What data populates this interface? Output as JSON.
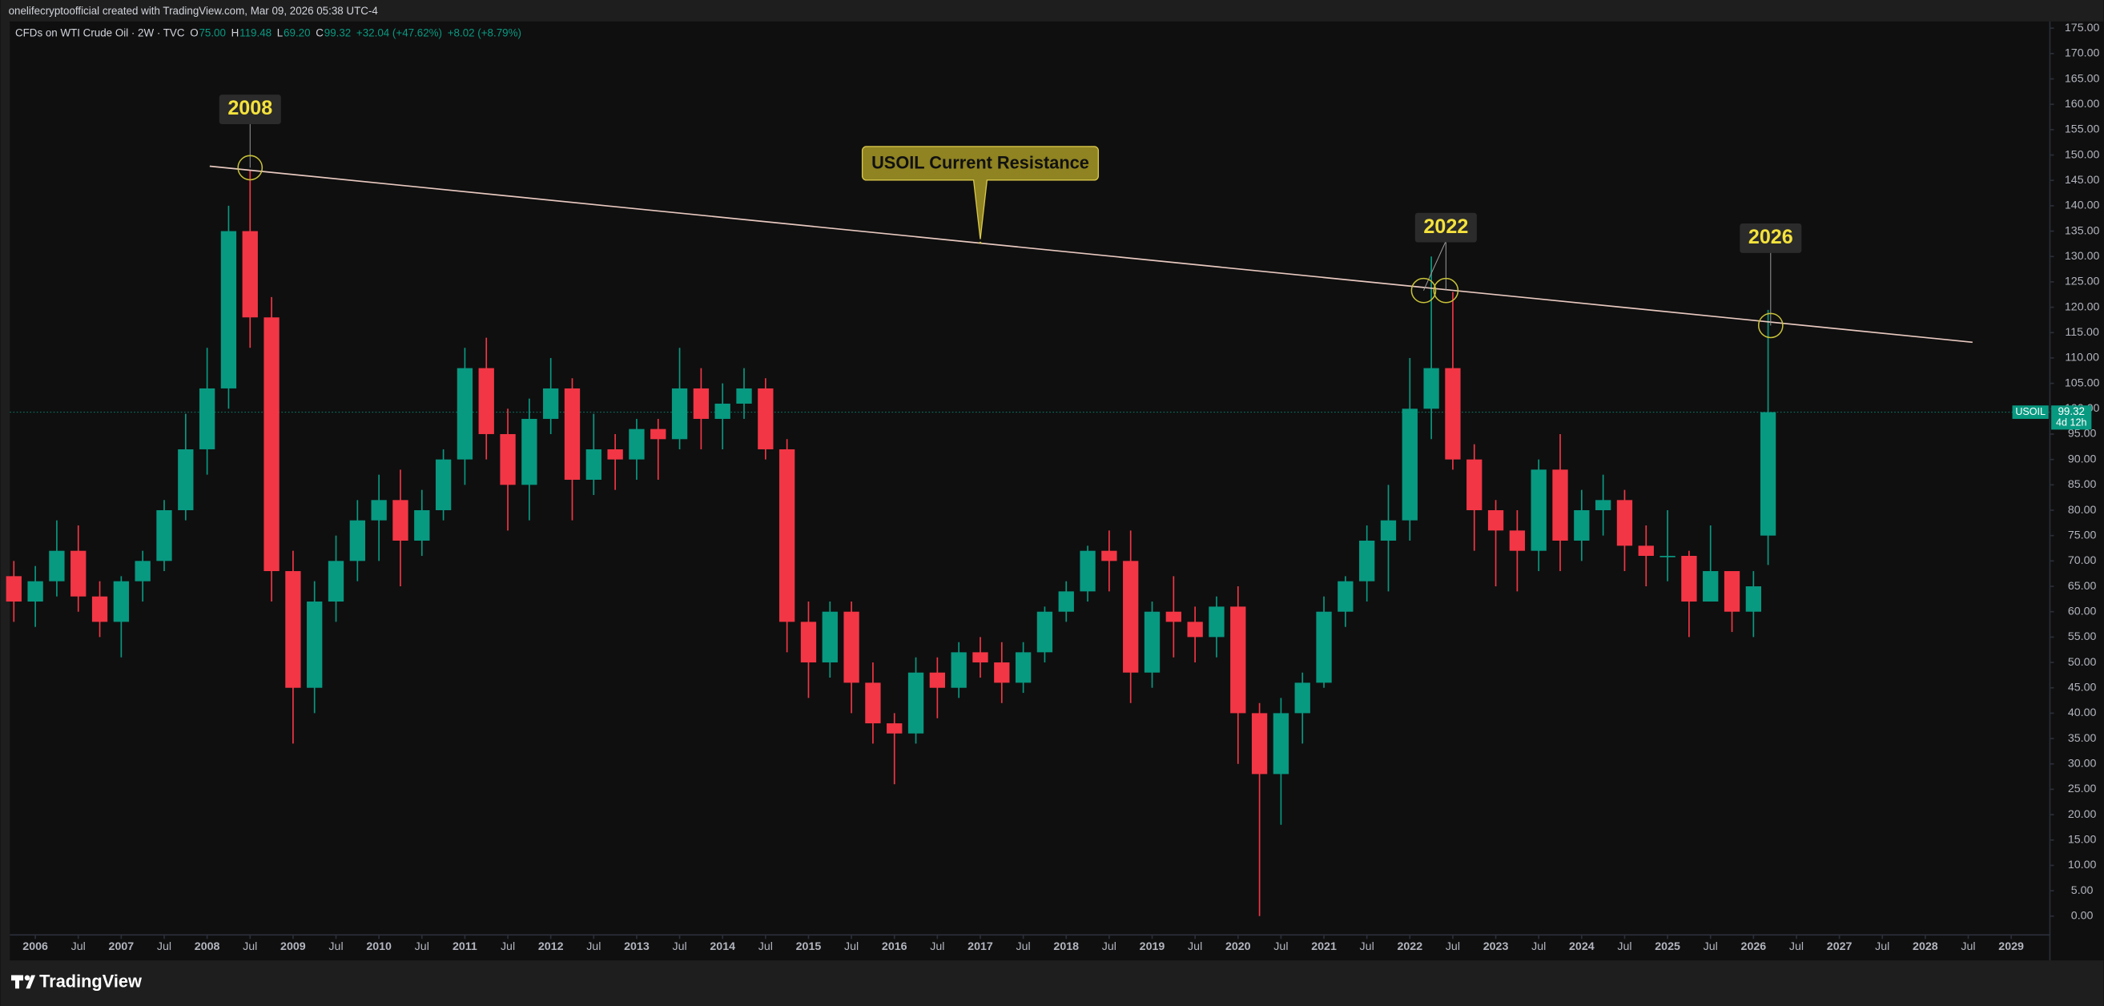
{
  "chart_data": {
    "type": "candlestick",
    "header": "onelifecryptoofficial created with TradingView.com, Mar 09, 2026 05:38 UTC-4",
    "legend": {
      "symbol": "CFDs on WTI Crude Oil · 2W · TVC",
      "o_key": "O",
      "o": "75.00",
      "h_key": "H",
      "h": "119.48",
      "l_key": "L",
      "l": "69.20",
      "c_key": "C",
      "c": "99.32",
      "change": "+32.04 (+47.62%)",
      "change2": "+8.02 (+8.79%)"
    },
    "brand": "TradingView",
    "up_color": "#089981",
    "down_color": "#f23645",
    "x": [
      2005.75,
      2006.0,
      2006.25,
      2006.5,
      2006.75,
      2007.0,
      2007.25,
      2007.5,
      2007.75,
      2008.0,
      2008.25,
      2008.5,
      2008.75,
      2009.0,
      2009.25,
      2009.5,
      2009.75,
      2010.0,
      2010.25,
      2010.5,
      2010.75,
      2011.0,
      2011.25,
      2011.5,
      2011.75,
      2012.0,
      2012.25,
      2012.5,
      2012.75,
      2013.0,
      2013.25,
      2013.5,
      2013.75,
      2014.0,
      2014.25,
      2014.5,
      2014.75,
      2015.0,
      2015.25,
      2015.5,
      2015.75,
      2016.0,
      2016.25,
      2016.5,
      2016.75,
      2017.0,
      2017.25,
      2017.5,
      2017.75,
      2018.0,
      2018.25,
      2018.5,
      2018.75,
      2019.0,
      2019.25,
      2019.5,
      2019.75,
      2020.0,
      2020.25,
      2020.5,
      2020.75,
      2021.0,
      2021.25,
      2021.5,
      2021.75,
      2022.0,
      2022.25,
      2022.5,
      2022.75,
      2023.0,
      2023.25,
      2023.5,
      2023.75,
      2024.0,
      2024.25,
      2024.5,
      2024.75,
      2025.0,
      2025.25,
      2025.5,
      2025.75,
      2026.0,
      2026.17
    ],
    "open": [
      67,
      62,
      66,
      72,
      63,
      58,
      66,
      70,
      80,
      92,
      104,
      135,
      118,
      68,
      45,
      62,
      70,
      78,
      82,
      74,
      80,
      90,
      108,
      95,
      85,
      98,
      104,
      86,
      92,
      90,
      96,
      94,
      104,
      98,
      101,
      104,
      92,
      58,
      50,
      60,
      46,
      38,
      36,
      48,
      45,
      52,
      50,
      46,
      52,
      60,
      64,
      72,
      70,
      48,
      60,
      58,
      55,
      61,
      40,
      28,
      40,
      46,
      60,
      66,
      74,
      78,
      100,
      108,
      90,
      80,
      76,
      72,
      88,
      74,
      80,
      82,
      73,
      71,
      71,
      62,
      68,
      60,
      75
    ],
    "high": [
      70,
      69,
      78,
      77,
      66,
      67,
      72,
      82,
      99,
      112,
      140,
      147,
      122,
      72,
      66,
      75,
      82,
      87,
      88,
      84,
      92,
      112,
      114,
      100,
      102,
      110,
      106,
      99,
      95,
      98,
      98,
      112,
      108,
      105,
      108,
      106,
      94,
      62,
      62,
      62,
      50,
      40,
      51,
      51,
      54,
      55,
      54,
      54,
      61,
      66,
      73,
      76,
      76,
      62,
      67,
      61,
      63,
      65,
      42,
      43,
      48,
      63,
      67,
      77,
      85,
      110,
      130,
      123,
      93,
      82,
      80,
      90,
      95,
      84,
      87,
      84,
      77,
      80,
      72,
      77,
      68,
      68,
      119.48
    ],
    "low": [
      58,
      57,
      63,
      60,
      55,
      51,
      62,
      68,
      78,
      87,
      100,
      112,
      62,
      34,
      40,
      58,
      66,
      70,
      65,
      71,
      78,
      85,
      90,
      76,
      78,
      95,
      78,
      83,
      84,
      86,
      86,
      92,
      92,
      92,
      98,
      90,
      52,
      43,
      47,
      40,
      34,
      26,
      34,
      39,
      43,
      47,
      42,
      44,
      50,
      58,
      62,
      64,
      42,
      45,
      51,
      50,
      51,
      30,
      0,
      18,
      34,
      45,
      57,
      62,
      64,
      74,
      94,
      88,
      72,
      65,
      64,
      68,
      68,
      70,
      75,
      68,
      65,
      66,
      55,
      62,
      56,
      55,
      69.2
    ],
    "close": [
      62,
      66,
      72,
      63,
      58,
      66,
      70,
      80,
      92,
      104,
      135,
      118,
      68,
      45,
      62,
      70,
      78,
      82,
      74,
      80,
      90,
      108,
      95,
      85,
      98,
      104,
      86,
      92,
      90,
      96,
      94,
      104,
      98,
      101,
      104,
      92,
      58,
      50,
      60,
      46,
      38,
      36,
      48,
      45,
      52,
      50,
      46,
      52,
      60,
      64,
      72,
      70,
      48,
      60,
      58,
      55,
      61,
      40,
      28,
      40,
      46,
      60,
      66,
      74,
      78,
      100,
      108,
      90,
      80,
      76,
      72,
      88,
      74,
      80,
      82,
      73,
      71,
      71,
      62,
      68,
      60,
      65,
      99.32
    ],
    "xlim": [
      2005.7,
      2029.45
    ],
    "ylim": [
      0,
      175
    ],
    "xticks": [
      2006,
      {
        "value": 2006.5,
        "label": "Jul"
      },
      2007,
      {
        "value": 2007.5,
        "label": "Jul"
      },
      2008,
      {
        "value": 2008.5,
        "label": "Jul"
      },
      2009,
      {
        "value": 2009.5,
        "label": "Jul"
      },
      2010,
      {
        "value": 2010.5,
        "label": "Jul"
      },
      2011,
      {
        "value": 2011.5,
        "label": "Jul"
      },
      2012,
      {
        "value": 2012.5,
        "label": "Jul"
      },
      2013,
      {
        "value": 2013.5,
        "label": "Jul"
      },
      2014,
      {
        "value": 2014.5,
        "label": "Jul"
      },
      2015,
      {
        "value": 2015.5,
        "label": "Jul"
      },
      2016,
      {
        "value": 2016.5,
        "label": "Jul"
      },
      2017,
      {
        "value": 2017.5,
        "label": "Jul"
      },
      2018,
      {
        "value": 2018.5,
        "label": "Jul"
      },
      2019,
      {
        "value": 2019.5,
        "label": "Jul"
      },
      2020,
      {
        "value": 2020.5,
        "label": "Jul"
      },
      2021,
      {
        "value": 2021.5,
        "label": "Jul"
      },
      2022,
      {
        "value": 2022.5,
        "label": "Jul"
      },
      2023,
      {
        "value": 2023.5,
        "label": "Jul"
      },
      2024,
      {
        "value": 2024.5,
        "label": "Jul"
      },
      2025,
      {
        "value": 2025.5,
        "label": "Jul"
      },
      2026,
      {
        "value": 2026.5,
        "label": "Jul"
      },
      2027,
      {
        "value": 2027.5,
        "label": "Jul"
      },
      2028,
      {
        "value": 2028.5,
        "label": "Jul"
      },
      2029
    ],
    "yticks": [
      {
        "value": 0,
        "label": "0.00"
      },
      {
        "value": 5,
        "label": "5.00"
      },
      {
        "value": 10,
        "label": "10.00"
      },
      {
        "value": 15,
        "label": "15.00"
      },
      {
        "value": 20,
        "label": "20.00"
      },
      {
        "value": 25,
        "label": "25.00"
      },
      {
        "value": 30,
        "label": "30.00"
      },
      {
        "value": 35,
        "label": "35.00"
      },
      {
        "value": 40,
        "label": "40.00"
      },
      {
        "value": 45,
        "label": "45.00"
      },
      {
        "value": 50,
        "label": "50.00"
      },
      {
        "value": 55,
        "label": "55.00"
      },
      {
        "value": 60,
        "label": "60.00"
      },
      {
        "value": 65,
        "label": "65.00"
      },
      {
        "value": 70,
        "label": "70.00"
      },
      {
        "value": 75,
        "label": "75.00"
      },
      {
        "value": 80,
        "label": "80.00"
      },
      {
        "value": 85,
        "label": "85.00"
      },
      {
        "value": 90,
        "label": "90.00"
      },
      {
        "value": 95,
        "label": "95.00"
      },
      {
        "value": 100,
        "label": "100.00"
      },
      {
        "value": 105,
        "label": "105.00"
      },
      {
        "value": 110,
        "label": "110.00"
      },
      {
        "value": 115,
        "label": "115.00"
      },
      {
        "value": 120,
        "label": "120.00"
      },
      {
        "value": 125,
        "label": "125.00"
      },
      {
        "value": 130,
        "label": "130.00"
      },
      {
        "value": 135,
        "label": "135.00"
      },
      {
        "value": 140,
        "label": "140.00"
      },
      {
        "value": 145,
        "label": "145.00"
      },
      {
        "value": 150,
        "label": "150.00"
      },
      {
        "value": 155,
        "label": "155.00"
      },
      {
        "value": 160,
        "label": "160.00"
      },
      {
        "value": 165,
        "label": "165.00"
      },
      {
        "value": 170,
        "label": "170.00"
      },
      {
        "value": 175,
        "label": "175.00"
      }
    ],
    "last_price": {
      "symbol": "USOIL",
      "value": 99.32,
      "label": "99.32",
      "countdown": "4d 12h"
    },
    "trendline": {
      "x": [
        2008.03,
        2028.55
      ],
      "y": [
        147.8,
        113.1
      ],
      "color": "#e8c9c0"
    },
    "annotations": [
      {
        "text": "2008",
        "x": 2008.5,
        "y": 147.5,
        "label_y": 159
      },
      {
        "text": "2022",
        "x": 2022.42,
        "y": 123.3,
        "label_y": 135.7,
        "x2": 2022.16
      },
      {
        "text": "2026",
        "x": 2026.2,
        "y": 116.4,
        "label_y": 133.6
      }
    ],
    "callout": {
      "text": "USOIL Current Resistance",
      "x": 2017.0,
      "y": 132.7,
      "label_y": 148.5
    }
  }
}
